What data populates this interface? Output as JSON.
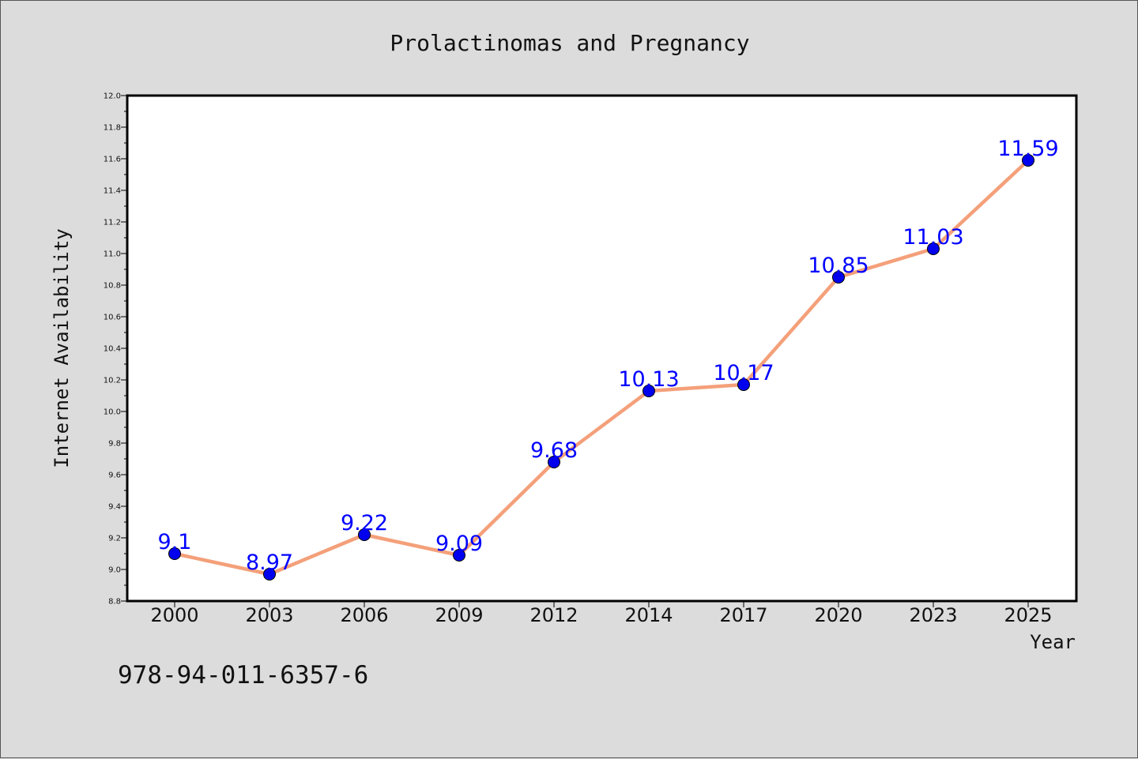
{
  "chart_data": {
    "type": "line",
    "title": "Prolactinomas and Pregnancy",
    "xlabel": "Year",
    "ylabel": "Internet Availability",
    "categories": [
      "2000",
      "2003",
      "2006",
      "2009",
      "2012",
      "2014",
      "2017",
      "2020",
      "2023",
      "2025"
    ],
    "series": [
      {
        "values": [
          9.1,
          8.97,
          9.22,
          9.09,
          9.68,
          10.13,
          10.17,
          10.85,
          11.03,
          11.59
        ]
      }
    ],
    "data_labels": [
      "9.1",
      "8.97",
      "9.22",
      "9.09",
      "9.68",
      "10.13",
      "10.17",
      "10.85",
      "11.03",
      "11.59"
    ],
    "ylim": [
      8.8,
      12.0
    ],
    "yticks": [
      "8.8",
      "9.0",
      "9.2",
      "9.4",
      "9.6",
      "9.8",
      "10.0",
      "10.2",
      "10.4",
      "10.6",
      "10.8",
      "11.0",
      "11.2",
      "11.4",
      "11.6",
      "11.8",
      "12.0"
    ],
    "grid": false,
    "colors": {
      "line": "#f4a07a",
      "marker": "#0000ee",
      "label": "#0000ff",
      "plot_bg": "#ffffff",
      "page_bg": "#dcdcdc"
    }
  },
  "footer": {
    "isbn": "978-94-011-6357-6"
  }
}
